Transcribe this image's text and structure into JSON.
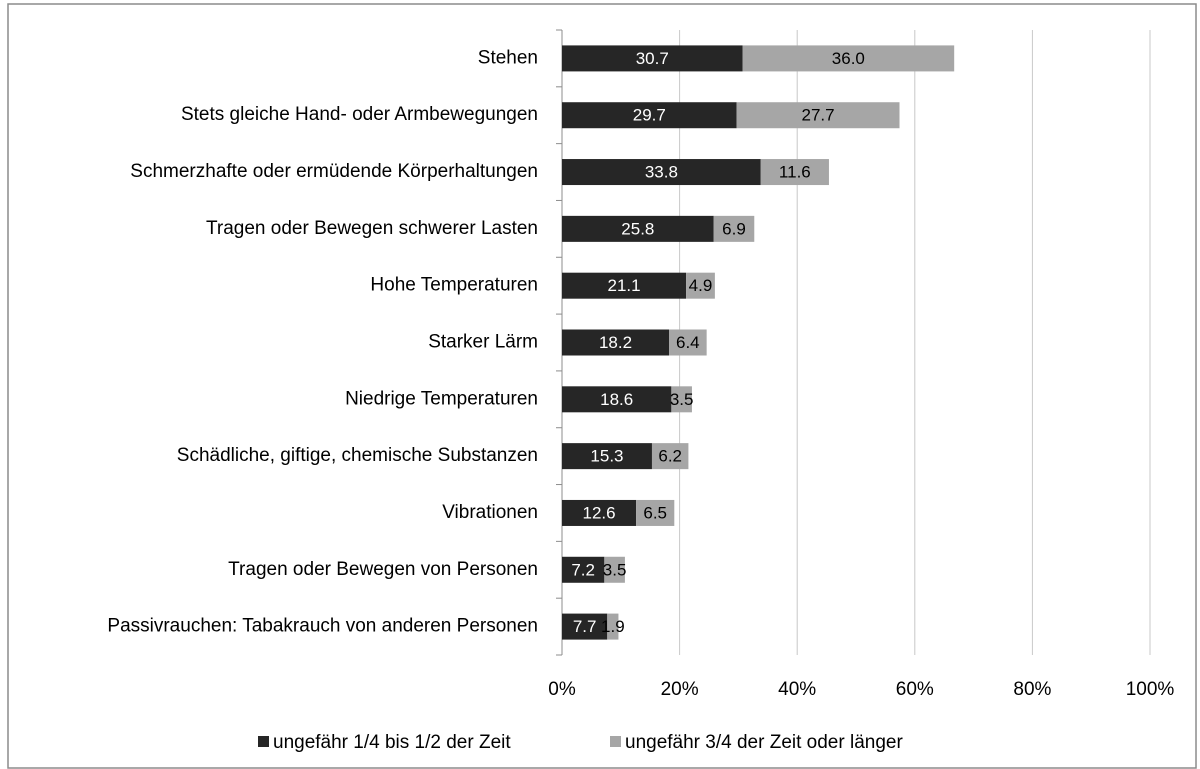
{
  "chart_data": {
    "type": "stacked_barh",
    "categories": [
      "Stehen",
      "Stets gleiche Hand- oder Armbewegungen",
      "Schmerzhafte oder ermüdende Körperhaltungen",
      "Tragen oder Bewegen schwerer Lasten",
      "Hohe Temperaturen",
      "Starker Lärm",
      "Niedrige Temperaturen",
      "Schädliche, giftige, chemische Substanzen",
      "Vibrationen",
      "Tragen oder Bewegen von Personen",
      "Passivrauchen: Tabakrauch von anderen Personen"
    ],
    "series": [
      {
        "name": "ungefähr 1/4 bis 1/2 der Zeit",
        "color": "#262626",
        "label_color": "#ffffff",
        "values": [
          30.7,
          29.7,
          33.8,
          25.8,
          21.1,
          18.2,
          18.6,
          15.3,
          12.6,
          7.2,
          7.7
        ]
      },
      {
        "name": "ungefähr 3/4 der Zeit oder länger",
        "color": "#a6a6a6",
        "label_color": "#000000",
        "values": [
          36.0,
          27.7,
          11.6,
          6.9,
          4.9,
          6.4,
          3.5,
          6.2,
          6.5,
          3.5,
          1.9
        ],
        "value_labels": [
          "36.0",
          "27.7",
          "11.6",
          "6.9",
          "4.9",
          "6.4",
          "3.5",
          "6.2",
          "6.5",
          "3.5",
          "1.9"
        ]
      }
    ],
    "xlim": [
      0,
      100
    ],
    "xticks": [
      {
        "value": 0,
        "label": "0%"
      },
      {
        "value": 20,
        "label": "20%"
      },
      {
        "value": 40,
        "label": "40%"
      },
      {
        "value": 60,
        "label": "60%"
      },
      {
        "value": 80,
        "label": "80%"
      },
      {
        "value": 100,
        "label": "100%"
      }
    ],
    "grid": true,
    "legend": "bottom"
  }
}
